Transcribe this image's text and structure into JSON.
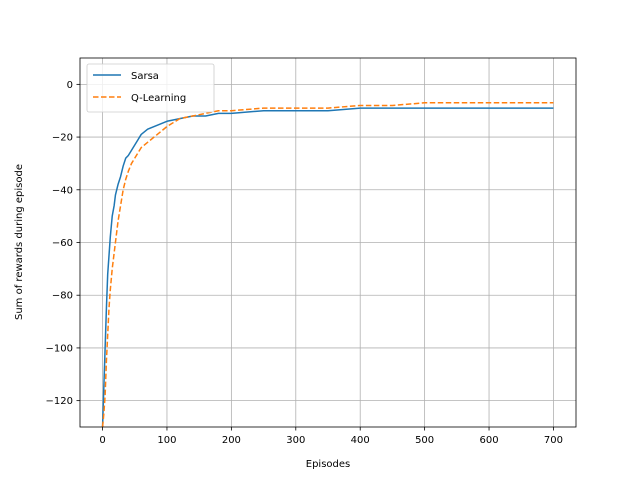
{
  "chart_data": {
    "type": "line",
    "title": "",
    "xlabel": "Episodes",
    "ylabel": "Sum of rewards during episode",
    "xlim": [
      -35,
      735
    ],
    "ylim": [
      -130,
      10
    ],
    "xticks": [
      0,
      100,
      200,
      300,
      400,
      500,
      600,
      700
    ],
    "yticks": [
      -120,
      -100,
      -80,
      -60,
      -40,
      -20,
      0
    ],
    "grid": true,
    "legend_position": "upper left",
    "series": [
      {
        "name": "Sarsa",
        "color": "#1f77b4",
        "line_style": "solid",
        "x": [
          0,
          2,
          4,
          6,
          8,
          10,
          12,
          15,
          18,
          20,
          24,
          28,
          32,
          36,
          40,
          45,
          50,
          55,
          60,
          70,
          80,
          90,
          100,
          120,
          140,
          160,
          180,
          200,
          250,
          300,
          350,
          400,
          450,
          500,
          700
        ],
        "y": [
          -130,
          -115,
          -100,
          -85,
          -72,
          -65,
          -58,
          -50,
          -46,
          -42,
          -38,
          -35,
          -31,
          -28,
          -27,
          -25,
          -23,
          -21,
          -19,
          -17,
          -16,
          -15,
          -14,
          -13,
          -12,
          -12,
          -11,
          -11,
          -10,
          -10,
          -10,
          -9,
          -9,
          -9,
          -9
        ]
      },
      {
        "name": "Q-Learning",
        "color": "#ff7f0e",
        "line_style": "dashed",
        "x": [
          0,
          2,
          4,
          6,
          8,
          10,
          12,
          15,
          18,
          20,
          24,
          28,
          32,
          36,
          40,
          45,
          50,
          55,
          60,
          70,
          80,
          90,
          100,
          120,
          140,
          160,
          180,
          200,
          250,
          300,
          350,
          400,
          450,
          500,
          700
        ],
        "y": [
          -130,
          -125,
          -118,
          -105,
          -95,
          -85,
          -78,
          -70,
          -64,
          -60,
          -52,
          -46,
          -40,
          -36,
          -33,
          -30,
          -28,
          -26,
          -24,
          -22,
          -20,
          -18,
          -16,
          -13,
          -12,
          -11,
          -10,
          -10,
          -9,
          -9,
          -9,
          -8,
          -8,
          -7,
          -7
        ]
      }
    ]
  }
}
